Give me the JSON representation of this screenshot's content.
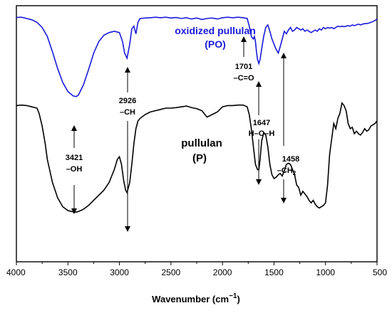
{
  "chart_data": {
    "type": "line",
    "xlabel": "Wavenumber (cm",
    "xlabel_sup": "−1",
    "xlabel_close": ")",
    "xlim": [
      4000,
      500
    ],
    "xticks": [
      4000,
      3500,
      3000,
      2500,
      2000,
      1500,
      1000,
      500
    ],
    "ylim": [
      0,
      1
    ],
    "grid": false,
    "colors": {
      "PO": "#1a1adb",
      "P": "#000000"
    },
    "series": [
      {
        "name": "oxidized pullulan (PO)",
        "label_line1": "oxidized pullulan",
        "label_line2": "(PO)",
        "color": "#1a1adb",
        "x": [
          4000,
          3950,
          3900,
          3850,
          3800,
          3750,
          3700,
          3650,
          3600,
          3550,
          3500,
          3450,
          3421,
          3400,
          3350,
          3300,
          3250,
          3200,
          3150,
          3100,
          3050,
          3000,
          2970,
          2950,
          2926,
          2900,
          2880,
          2860,
          2840,
          2820,
          2800,
          2750,
          2700,
          2650,
          2600,
          2550,
          2500,
          2450,
          2400,
          2350,
          2300,
          2250,
          2200,
          2150,
          2100,
          2050,
          2000,
          1950,
          1900,
          1850,
          1800,
          1760,
          1740,
          1720,
          1701,
          1690,
          1680,
          1670,
          1660,
          1647,
          1635,
          1620,
          1600,
          1580,
          1560,
          1540,
          1520,
          1500,
          1480,
          1458,
          1440,
          1420,
          1400,
          1380,
          1360,
          1340,
          1320,
          1300,
          1280,
          1260,
          1240,
          1220,
          1200,
          1180,
          1160,
          1140,
          1120,
          1100,
          1080,
          1060,
          1040,
          1020,
          1000,
          980,
          960,
          940,
          920,
          900,
          880,
          860,
          840,
          820,
          800,
          780,
          760,
          740,
          720,
          700,
          680,
          660,
          640,
          620,
          600,
          580,
          560,
          540,
          520,
          500
        ],
        "y": [
          0.954,
          0.955,
          0.95,
          0.945,
          0.935,
          0.915,
          0.88,
          0.82,
          0.755,
          0.7,
          0.665,
          0.648,
          0.645,
          0.65,
          0.69,
          0.75,
          0.815,
          0.86,
          0.885,
          0.895,
          0.9,
          0.895,
          0.86,
          0.815,
          0.795,
          0.85,
          0.91,
          0.92,
          0.89,
          0.935,
          0.95,
          0.952,
          0.953,
          0.955,
          0.953,
          0.955,
          0.952,
          0.954,
          0.95,
          0.953,
          0.948,
          0.952,
          0.946,
          0.95,
          0.952,
          0.948,
          0.953,
          0.955,
          0.953,
          0.955,
          0.953,
          0.95,
          0.92,
          0.88,
          0.87,
          0.88,
          0.86,
          0.82,
          0.79,
          0.774,
          0.79,
          0.83,
          0.88,
          0.915,
          0.925,
          0.9,
          0.87,
          0.85,
          0.83,
          0.815,
          0.84,
          0.87,
          0.9,
          0.89,
          0.905,
          0.915,
          0.9,
          0.905,
          0.915,
          0.91,
          0.905,
          0.91,
          0.9,
          0.905,
          0.9,
          0.895,
          0.9,
          0.905,
          0.9,
          0.91,
          0.905,
          0.915,
          0.91,
          0.915,
          0.912,
          0.915,
          0.91,
          0.915,
          0.92,
          0.918,
          0.92,
          0.918,
          0.92,
          0.922,
          0.92,
          0.925,
          0.922,
          0.925,
          0.928,
          0.925,
          0.928,
          0.93,
          0.93,
          0.932,
          0.935,
          0.938,
          0.942,
          0.948
        ]
      },
      {
        "name": "pullulan (P)",
        "label_line1": "pullulan",
        "label_line2": "(P)",
        "color": "#000000",
        "x": [
          4000,
          3950,
          3900,
          3850,
          3800,
          3780,
          3750,
          3720,
          3700,
          3650,
          3600,
          3550,
          3500,
          3450,
          3421,
          3400,
          3350,
          3300,
          3250,
          3200,
          3150,
          3100,
          3050,
          3020,
          3000,
          2980,
          2960,
          2940,
          2926,
          2900,
          2880,
          2860,
          2840,
          2820,
          2800,
          2750,
          2700,
          2650,
          2600,
          2550,
          2500,
          2450,
          2400,
          2350,
          2300,
          2250,
          2200,
          2150,
          2100,
          2050,
          2000,
          1950,
          1900,
          1850,
          1800,
          1760,
          1740,
          1720,
          1700,
          1680,
          1660,
          1647,
          1635,
          1620,
          1600,
          1580,
          1560,
          1540,
          1520,
          1500,
          1480,
          1458,
          1440,
          1420,
          1400,
          1380,
          1360,
          1340,
          1320,
          1300,
          1280,
          1260,
          1240,
          1220,
          1200,
          1180,
          1160,
          1140,
          1120,
          1100,
          1080,
          1060,
          1040,
          1020,
          1000,
          980,
          960,
          940,
          920,
          900,
          880,
          860,
          840,
          820,
          800,
          780,
          760,
          740,
          720,
          700,
          680,
          660,
          640,
          620,
          600,
          580,
          560,
          540,
          520,
          500
        ],
        "y": [
          0.61,
          0.612,
          0.61,
          0.605,
          0.6,
          0.58,
          0.53,
          0.46,
          0.4,
          0.31,
          0.25,
          0.215,
          0.2,
          0.195,
          0.194,
          0.196,
          0.205,
          0.22,
          0.24,
          0.26,
          0.28,
          0.31,
          0.36,
          0.4,
          0.41,
          0.38,
          0.32,
          0.28,
          0.27,
          0.31,
          0.38,
          0.46,
          0.52,
          0.55,
          0.56,
          0.575,
          0.585,
          0.59,
          0.595,
          0.6,
          0.6,
          0.602,
          0.605,
          0.608,
          0.602,
          0.598,
          0.59,
          0.565,
          0.575,
          0.585,
          0.605,
          0.61,
          0.61,
          0.612,
          0.612,
          0.605,
          0.575,
          0.52,
          0.45,
          0.38,
          0.36,
          0.36,
          0.4,
          0.47,
          0.505,
          0.495,
          0.45,
          0.38,
          0.34,
          0.325,
          0.33,
          0.34,
          0.345,
          0.335,
          0.355,
          0.38,
          0.385,
          0.38,
          0.36,
          0.34,
          0.3,
          0.29,
          0.26,
          0.275,
          0.265,
          0.255,
          0.24,
          0.23,
          0.24,
          0.225,
          0.215,
          0.21,
          0.215,
          0.22,
          0.23,
          0.3,
          0.42,
          0.48,
          0.54,
          0.52,
          0.56,
          0.58,
          0.62,
          0.61,
          0.59,
          0.54,
          0.52,
          0.525,
          0.5,
          0.51,
          0.5,
          0.495,
          0.505,
          0.52,
          0.51,
          0.515,
          0.53,
          0.535,
          0.54,
          0.55
        ]
      }
    ],
    "annotations": [
      {
        "id": "ann-3421",
        "lines": [
          "3421",
          "–OH"
        ],
        "x": 3421
      },
      {
        "id": "ann-2926",
        "lines": [
          "2926",
          "–CH"
        ],
        "x": 2926
      },
      {
        "id": "ann-1701",
        "lines": [
          "1701",
          "–C=O"
        ],
        "x": 1701
      },
      {
        "id": "ann-1647",
        "lines": [
          "1647",
          "H–O–H"
        ],
        "x": 1647
      },
      {
        "id": "ann-1458",
        "lines": [
          "1458",
          "–CH",
          "2"
        ],
        "x": 1458
      }
    ]
  }
}
